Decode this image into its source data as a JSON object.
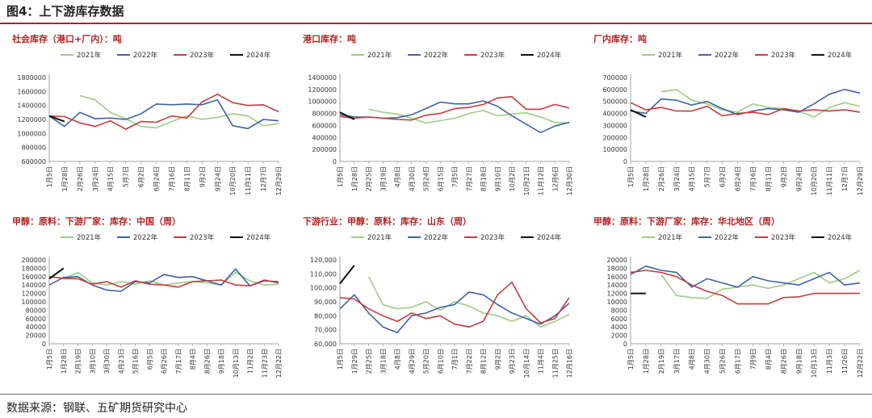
{
  "figure": {
    "title": "图4：上下游库存数据",
    "source": "数据来源：钢联、五矿期货研究中心"
  },
  "colors": {
    "2021年": "#9dcc82",
    "2022年": "#3e63a8",
    "2023年": "#c93a3a",
    "2024年": "#111111"
  },
  "chart_data": [
    {
      "type": "line",
      "title": "社会库存（港口+厂内）：吨",
      "ylim": [
        600000,
        1800000
      ],
      "yticks": [
        "600000",
        "800000",
        "1000000",
        "1200000",
        "1400000",
        "1600000",
        "1800000"
      ],
      "x": [
        "1月5日",
        "1月28日",
        "2月26日",
        "3月24日",
        "4月15日",
        "5月7日",
        "6月2日",
        "6月24日",
        "7月16日",
        "8月11日",
        "9月2日",
        "9月24日",
        "10月20日",
        "11月11日",
        "12月7日",
        "12月29日"
      ],
      "series": [
        {
          "name": "2021年",
          "values": [
            null,
            null,
            1540000,
            1480000,
            1300000,
            1210000,
            1100000,
            1080000,
            1170000,
            1250000,
            1200000,
            1230000,
            1280000,
            1250000,
            1110000,
            1140000
          ]
        },
        {
          "name": "2022年",
          "values": [
            1250000,
            1100000,
            1300000,
            1210000,
            1220000,
            1200000,
            1280000,
            1420000,
            1410000,
            1420000,
            1410000,
            1480000,
            1110000,
            1070000,
            1200000,
            1180000
          ]
        },
        {
          "name": "2023年",
          "values": [
            1250000,
            1240000,
            1150000,
            1100000,
            1180000,
            1060000,
            1170000,
            1160000,
            1250000,
            1220000,
            1450000,
            1560000,
            1440000,
            1400000,
            1410000,
            1310000
          ]
        },
        {
          "name": "2024年",
          "values": [
            1250000,
            1170000,
            null,
            null,
            null,
            null,
            null,
            null,
            null,
            null,
            null,
            null,
            null,
            null,
            null,
            null
          ]
        }
      ]
    },
    {
      "type": "line",
      "title": "港口库存：吨",
      "ylim": [
        0,
        1400000
      ],
      "yticks": [
        "0",
        "200000",
        "400000",
        "600000",
        "800000",
        "1000000",
        "1200000",
        "1400000"
      ],
      "x": [
        "1月5日",
        "1月28日",
        "2月25日",
        "3月19日",
        "4月8日",
        "4月30日",
        "5月24日",
        "6月15日",
        "7月5日",
        "7月27日",
        "8月18日",
        "9月10日",
        "10月2日",
        "10月21日",
        "11月12日",
        "12月6日",
        "12月30日"
      ],
      "series": [
        {
          "name": "2021年",
          "values": [
            null,
            null,
            870000,
            820000,
            790000,
            720000,
            640000,
            680000,
            720000,
            800000,
            850000,
            760000,
            790000,
            810000,
            740000,
            650000,
            640000
          ]
        },
        {
          "name": "2022年",
          "values": [
            780000,
            740000,
            740000,
            720000,
            730000,
            780000,
            880000,
            990000,
            960000,
            960000,
            1010000,
            920000,
            760000,
            620000,
            480000,
            590000,
            650000
          ]
        },
        {
          "name": "2023年",
          "values": [
            750000,
            720000,
            740000,
            720000,
            700000,
            690000,
            770000,
            800000,
            880000,
            900000,
            950000,
            1060000,
            1080000,
            870000,
            870000,
            950000,
            890000
          ]
        },
        {
          "name": "2024年",
          "values": [
            820000,
            700000,
            null,
            null,
            null,
            null,
            null,
            null,
            null,
            null,
            null,
            null,
            null,
            null,
            null,
            null,
            null
          ]
        }
      ]
    },
    {
      "type": "line",
      "title": "厂内库存：吨",
      "ylim": [
        0,
        700000
      ],
      "yticks": [
        "0",
        "100000",
        "200000",
        "300000",
        "400000",
        "500000",
        "600000",
        "700000"
      ],
      "x": [
        "1月5日",
        "1月28日",
        "2月26日",
        "3月24日",
        "4月15日",
        "5月7日",
        "6月2日",
        "6月24日",
        "7月16日",
        "8月11日",
        "9月2日",
        "9月24日",
        "10月20日",
        "11月11日",
        "12月7日",
        "12月29日"
      ],
      "series": [
        {
          "name": "2021年",
          "values": [
            null,
            null,
            580000,
            600000,
            510000,
            480000,
            430000,
            410000,
            480000,
            450000,
            440000,
            420000,
            370000,
            450000,
            490000,
            460000
          ]
        },
        {
          "name": "2022年",
          "values": [
            420000,
            400000,
            520000,
            510000,
            470000,
            500000,
            440000,
            390000,
            420000,
            440000,
            430000,
            410000,
            480000,
            560000,
            600000,
            570000
          ]
        },
        {
          "name": "2023年",
          "values": [
            490000,
            430000,
            450000,
            420000,
            420000,
            460000,
            380000,
            400000,
            410000,
            390000,
            440000,
            420000,
            430000,
            420000,
            430000,
            410000
          ]
        },
        {
          "name": "2024年",
          "values": [
            430000,
            370000,
            null,
            null,
            null,
            null,
            null,
            null,
            null,
            null,
            null,
            null,
            null,
            null,
            null,
            null
          ]
        }
      ]
    },
    {
      "type": "line",
      "title": "甲醇：原料：下游厂家：库存：中国（周）",
      "ylim": [
        0,
        200000
      ],
      "yticks": [
        "0",
        "20000",
        "40000",
        "60000",
        "80000",
        "100000",
        "120000",
        "140000",
        "160000",
        "180000",
        "200000"
      ],
      "x": [
        "1月5日",
        "1月28日",
        "2月19日",
        "3月10日",
        "3月30日",
        "4月23日",
        "5月16日",
        "6月5日",
        "6月26日",
        "7月17日",
        "8月4日",
        "8月26日",
        "9月18日",
        "10月13日",
        "11月2日",
        "11月23日",
        "12月22日"
      ],
      "series": [
        {
          "name": "2021年",
          "values": [
            null,
            155000,
            170000,
            145000,
            140000,
            148000,
            142000,
            150000,
            140000,
            145000,
            148000,
            145000,
            140000,
            170000,
            150000,
            140000,
            142000
          ]
        },
        {
          "name": "2022年",
          "values": [
            140000,
            158000,
            160000,
            140000,
            128000,
            125000,
            148000,
            145000,
            165000,
            158000,
            160000,
            150000,
            140000,
            178000,
            138000,
            150000,
            148000
          ]
        },
        {
          "name": "2023年",
          "values": [
            160000,
            156000,
            155000,
            142000,
            148000,
            135000,
            150000,
            142000,
            140000,
            135000,
            148000,
            150000,
            152000,
            140000,
            138000,
            152000,
            145000
          ]
        },
        {
          "name": "2024年",
          "values": [
            155000,
            180000,
            null,
            null,
            null,
            null,
            null,
            null,
            null,
            null,
            null,
            null,
            null,
            null,
            null,
            null,
            null
          ]
        }
      ]
    },
    {
      "type": "line",
      "title": "下游行业：甲醇：原料：库存：山东（周）",
      "ylim": [
        60000,
        120000
      ],
      "yticks": [
        "60,000",
        "70,000",
        "80,000",
        "90,000",
        "100,000",
        "110,000",
        "120,000"
      ],
      "x": [
        "1月5日",
        "1月29日",
        "2月25日",
        "3月18日",
        "4月8日",
        "4月29日",
        "5月20日",
        "6月10日",
        "7月1日",
        "7月22日",
        "8月12日",
        "9月2日",
        "9月23日",
        "10月14日",
        "11月4日",
        "11月25日",
        "12月16日"
      ],
      "series": [
        {
          "name": "2021年",
          "values": [
            null,
            null,
            108000,
            88000,
            85000,
            86000,
            90000,
            84000,
            90000,
            87000,
            82000,
            80000,
            76000,
            80000,
            72000,
            76000,
            81000
          ]
        },
        {
          "name": "2022年",
          "values": [
            85000,
            95000,
            82000,
            72000,
            68000,
            80000,
            82000,
            86000,
            88000,
            97000,
            95000,
            88000,
            82000,
            78000,
            74000,
            80000,
            89000
          ]
        },
        {
          "name": "2023年",
          "values": [
            93000,
            92000,
            85000,
            80000,
            76000,
            82000,
            78000,
            80000,
            74000,
            72000,
            76000,
            95000,
            104000,
            85000,
            75000,
            78000,
            93000
          ]
        },
        {
          "name": "2024年",
          "values": [
            103000,
            116000,
            null,
            null,
            null,
            null,
            null,
            null,
            null,
            null,
            null,
            null,
            null,
            null,
            null,
            null,
            null
          ]
        }
      ]
    },
    {
      "type": "line",
      "title": "甲醇：原料：下游厂家：库存：华北地区（周）",
      "ylim": [
        0,
        20000
      ],
      "yticks": [
        "0",
        "2000",
        "4000",
        "6000",
        "8000",
        "10000",
        "12000",
        "14000",
        "16000",
        "18000",
        "20000"
      ],
      "x": [
        "1月5日",
        "1月28日",
        "2月19日",
        "3月17日",
        "4月8日",
        "4月30日",
        "5月26日",
        "6月17日",
        "7月9日",
        "8月4日",
        "8月26日",
        "9月18日",
        "10月13日",
        "11月3日",
        "11/26日",
        "12月22日"
      ],
      "series": [
        {
          "name": "2021年",
          "values": [
            null,
            null,
            16500,
            11500,
            11000,
            10800,
            13000,
            13500,
            14000,
            13200,
            14000,
            15500,
            17000,
            14500,
            15500,
            17500
          ]
        },
        {
          "name": "2022年",
          "values": [
            16500,
            18500,
            17500,
            17000,
            13500,
            15500,
            14500,
            13500,
            16000,
            15000,
            14500,
            14000,
            15500,
            17000,
            14000,
            14500
          ]
        },
        {
          "name": "2023年",
          "values": [
            17000,
            17500,
            17000,
            16000,
            14000,
            12500,
            11500,
            9500,
            9500,
            9500,
            11000,
            11200,
            12000,
            12000,
            12000,
            12000
          ]
        },
        {
          "name": "2024年",
          "values": [
            12000,
            12000,
            null,
            null,
            null,
            null,
            null,
            null,
            null,
            null,
            null,
            null,
            null,
            null,
            null,
            null
          ]
        }
      ]
    }
  ]
}
